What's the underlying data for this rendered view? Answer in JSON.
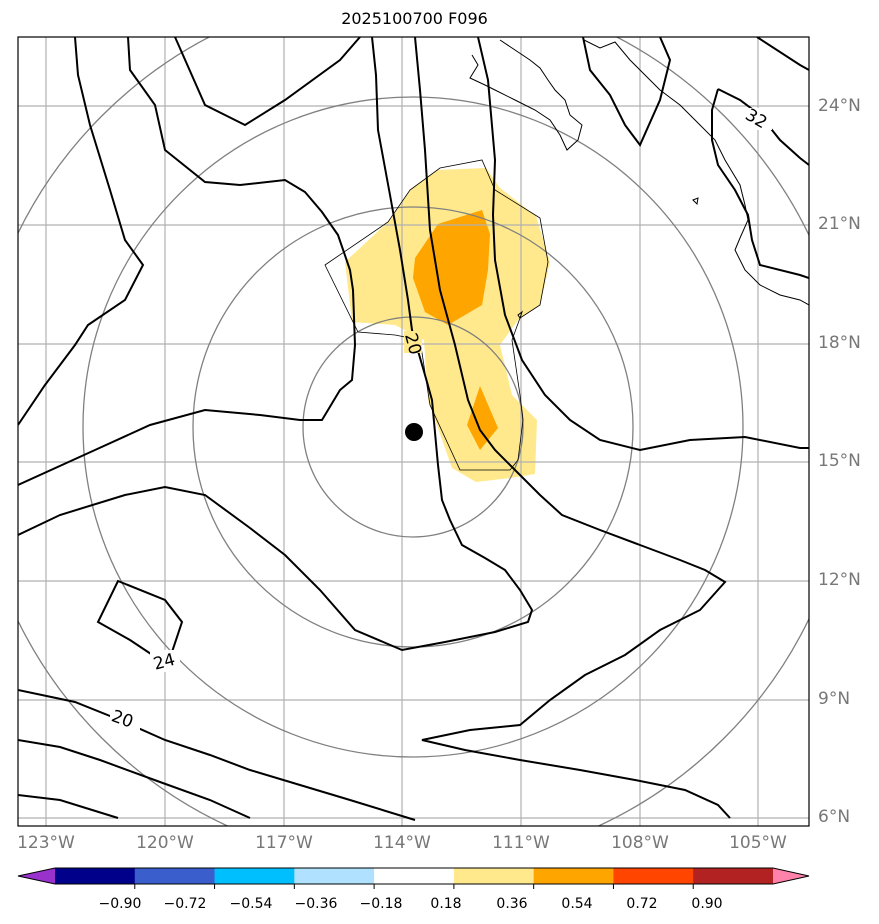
{
  "title": "2025100700 F096",
  "storm_marker": {
    "name": "storm-center",
    "lon": -113.7,
    "lat": 15.7
  },
  "lat_labels": [
    "24°N",
    "21°N",
    "18°N",
    "15°N",
    "12°N",
    "9°N",
    "6°N"
  ],
  "lon_labels": [
    "123°W",
    "120°W",
    "117°W",
    "114°W",
    "111°W",
    "108°W",
    "105°W"
  ],
  "contour_labels": [
    "20",
    "32",
    "24",
    "20"
  ],
  "colorbar": {
    "ticks": [
      "−0.90",
      "−0.72",
      "−0.54",
      "−0.36",
      "−0.18",
      "0.18",
      "0.36",
      "0.54",
      "0.72",
      "0.90"
    ],
    "colors": [
      "#9932CC",
      "#00008B",
      "#3A5FCD",
      "#00BFFF",
      "#B0E2FF",
      "#FFFFFF",
      "#FFE98C",
      "#FFA500",
      "#FF4500",
      "#B22222",
      "#FF82AB"
    ]
  },
  "colors": {
    "fill_low": "#FFE98C",
    "fill_high": "#FFA500",
    "grid": "#b0b0b0",
    "range_rings": "#808080",
    "contour": "#000000",
    "tick_label": "#777777"
  }
}
